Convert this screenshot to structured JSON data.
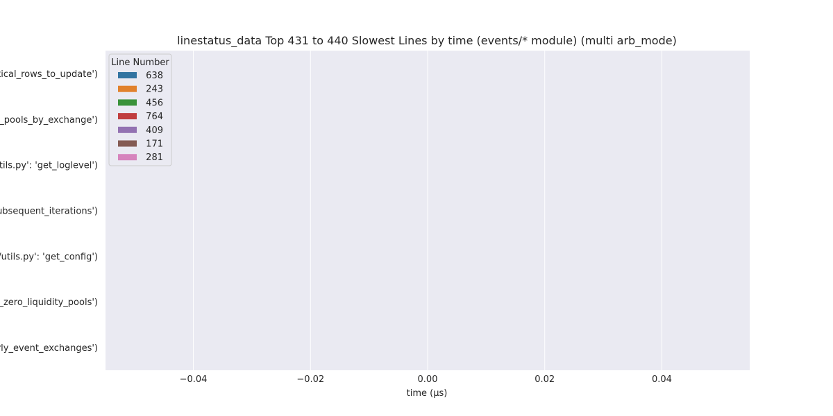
{
  "chart_data": {
    "type": "bar",
    "orientation": "horizontal",
    "title": "linestatus_data Top 431 to 440 Slowest Lines by time (events/* module) (multi arb_mode)",
    "xlabel": "time (μs)",
    "ylabel": "",
    "xlim": [
      -0.055,
      0.055
    ],
    "x_ticks": [
      -0.04,
      -0.02,
      0.0,
      0.02,
      0.04
    ],
    "x_tick_labels": [
      "−0.04",
      "−0.02",
      "0.00",
      "0.02",
      "0.04"
    ],
    "categories": [
      "tical_rows_to_update')",
      "l_pools_by_exchange')",
      "/utils.py': 'get_loglevel')",
      "subsequent_iterations')",
      "/utils.py': 'get_config')",
      "e_zero_liquidity_pools')",
      "erly_event_exchanges')"
    ],
    "grid": true,
    "legend": {
      "title": "Line Number",
      "placement": "top-left",
      "entries": [
        {
          "label": "638",
          "color": "#3274a1"
        },
        {
          "label": "243",
          "color": "#e1812c"
        },
        {
          "label": "456",
          "color": "#3a923a"
        },
        {
          "label": "764",
          "color": "#c03d3e"
        },
        {
          "label": "409",
          "color": "#9372b2"
        },
        {
          "label": "171",
          "color": "#845b53"
        },
        {
          "label": "281",
          "color": "#d684bd"
        }
      ]
    },
    "series": [
      {
        "name": "638",
        "values": [
          0,
          0,
          0,
          0,
          0,
          0,
          0
        ]
      },
      {
        "name": "243",
        "values": [
          0,
          0,
          0,
          0,
          0,
          0,
          0
        ]
      },
      {
        "name": "456",
        "values": [
          0,
          0,
          0,
          0,
          0,
          0,
          0
        ]
      },
      {
        "name": "764",
        "values": [
          0,
          0,
          0,
          0,
          0,
          0,
          0
        ]
      },
      {
        "name": "409",
        "values": [
          0,
          0,
          0,
          0,
          0,
          0,
          0
        ]
      },
      {
        "name": "171",
        "values": [
          0,
          0,
          0,
          0,
          0,
          0,
          0
        ]
      },
      {
        "name": "281",
        "values": [
          0,
          0,
          0,
          0,
          0,
          0,
          0
        ]
      }
    ],
    "colors": {
      "background": "#ffffff",
      "plot_area": "#eaeaf2",
      "grid": "#ffffff",
      "text": "#262626"
    }
  }
}
